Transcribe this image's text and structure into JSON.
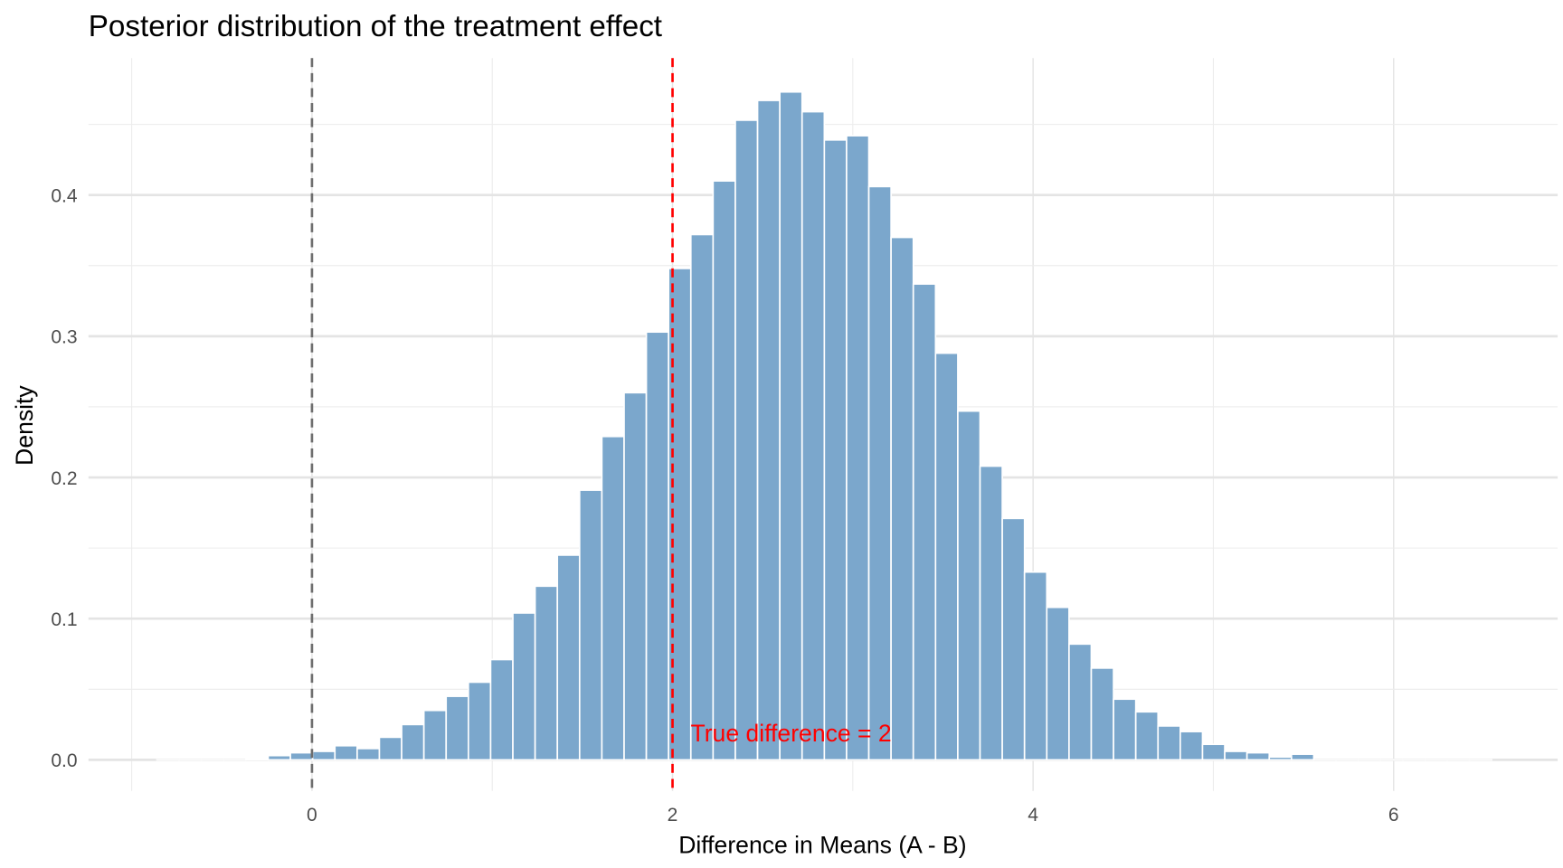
{
  "chart_data": {
    "type": "bar",
    "subtype": "histogram",
    "title": "Posterior distribution of the treatment effect",
    "xlabel": "Difference in Means (A - B)",
    "ylabel": "Density",
    "xlim": [
      -1.24,
      6.91
    ],
    "ylim": [
      -0.022,
      0.497
    ],
    "x_ticks": [
      0,
      2,
      4,
      6
    ],
    "x_tick_labels": [
      "0",
      "2",
      "4",
      "6"
    ],
    "y_ticks": [
      0.0,
      0.1,
      0.2,
      0.3,
      0.4
    ],
    "y_tick_labels": [
      "0.0",
      "0.1",
      "0.2",
      "0.3",
      "0.4"
    ],
    "grid": true,
    "bin_start": -0.86,
    "bin_width": 0.1234,
    "densities": [
      0,
      0,
      0,
      0,
      0.001,
      0.003,
      0.005,
      0.006,
      0.01,
      0.008,
      0.016,
      0.025,
      0.035,
      0.045,
      0.055,
      0.071,
      0.104,
      0.123,
      0.145,
      0.191,
      0.229,
      0.26,
      0.303,
      0.348,
      0.372,
      0.41,
      0.453,
      0.467,
      0.473,
      0.459,
      0.439,
      0.442,
      0.406,
      0.37,
      0.337,
      0.288,
      0.247,
      0.208,
      0.171,
      0.133,
      0.108,
      0.082,
      0.065,
      0.043,
      0.034,
      0.024,
      0.02,
      0.011,
      0.006,
      0.005,
      0.002,
      0.004,
      0,
      0,
      0,
      0,
      0,
      0,
      0,
      0
    ],
    "bar_color": "#7ba7cc",
    "reference_lines": [
      {
        "x": 0,
        "color": "#6e6e6e",
        "style": "dashed"
      },
      {
        "x": 2,
        "color": "#ff0000",
        "style": "dashed"
      }
    ],
    "annotation": {
      "text": "True difference = 2",
      "x": 2.1,
      "y": 0.013,
      "color": "#ff0000"
    }
  }
}
